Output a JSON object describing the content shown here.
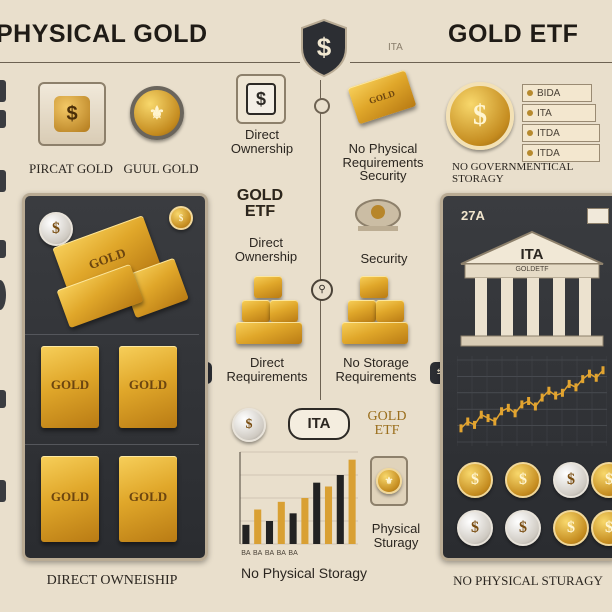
{
  "header": {
    "left_title": "PHYSICAL GOLD",
    "right_title": "GOLD ETF",
    "shield_symbol": "$",
    "top_tag": "ITA"
  },
  "left_top": {
    "label_physical": "PIRCAT GOLD",
    "label_gold": "GUUL GOLD",
    "icons": [
      "dollar-box-icon",
      "coin-medallion-icon"
    ]
  },
  "center": {
    "direct_ownership_1": "Direct\nOwnership",
    "no_physical": "No Physical\nRequirements\nSecurity",
    "gold_etf_logo": "GOLD\nETF",
    "direct_ownership_2": "Direct\nOwnership",
    "security": "Security",
    "direct_requirements": "Direct\nRequirements",
    "no_storage": "No Storage\nRequirements",
    "ita_badge": "ITA",
    "gold_etf_badge": "GOLD\nETF",
    "physical_sturagy": "Physical\nSturagy",
    "bottom_caption": "No Physical Storagy",
    "bar_labels": [
      "BA",
      "BA",
      "BA",
      "BA",
      "BA"
    ],
    "bar_tag": "ITA"
  },
  "left_panel": {
    "bar_text": "GOLD",
    "caption": "DIRECT OWNEISHIP",
    "coin_symbol": "$"
  },
  "right_top": {
    "label": "NO GOVERNMENTICAL STORAGY",
    "chips": [
      "BIDA",
      "ITA",
      "ITDA",
      "ITDA"
    ]
  },
  "right_panel": {
    "tag": "27A",
    "bank_name": "ITA",
    "bank_sub": "GOLDETF",
    "caption": "NO PHYSICAL STURAGY",
    "coin_symbol": "$"
  },
  "colors": {
    "background": "#e9dfcc",
    "gold": "#e0a72a",
    "dark_panel": "#2f3135",
    "chart_line": "#e2a430"
  },
  "chart_data": {
    "type": "bar",
    "categories": [
      "BA",
      "BA",
      "BA",
      "BA",
      "BA",
      "",
      "",
      "",
      "",
      ""
    ],
    "values": [
      2.5,
      4.5,
      3.0,
      5.5,
      4.0,
      6.0,
      8.0,
      7.5,
      9.0,
      11.0
    ],
    "colors": [
      "#222",
      "#d9a033",
      "#222",
      "#d9a033",
      "#222",
      "#d9a033",
      "#222",
      "#d9a033",
      "#222",
      "#d9a033"
    ],
    "xlabel": "",
    "ylabel": "",
    "ylim": [
      0,
      12
    ]
  },
  "line_chart": {
    "type": "line",
    "values": [
      2,
      3,
      2.5,
      4,
      3.5,
      3,
      4.5,
      5,
      4.2,
      5.5,
      6,
      5.2,
      6.5,
      7.5,
      6.8,
      7.2,
      8.5,
      8,
      9.2,
      10,
      9.4,
      10.5
    ],
    "ylim": [
      0,
      12
    ]
  }
}
